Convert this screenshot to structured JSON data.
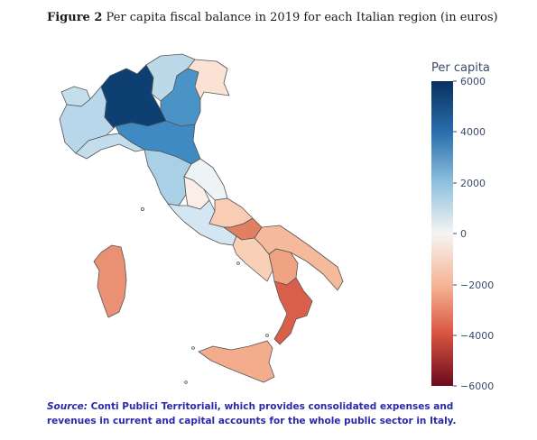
{
  "caption": {
    "figure_label": "Figure 2",
    "text": "Per capita fiscal balance in 2019 for each Italian region (in euros)"
  },
  "legend": {
    "title": "Per capita",
    "ticks": [
      "6000",
      "4000",
      "2000",
      "0",
      "−2000",
      "−4000",
      "−6000"
    ]
  },
  "source": {
    "label": "Source:",
    "text": "Conti Publici Territoriali, which provides consolidated expenses and revenues in current and capital accounts for the whole public sector in Italy."
  },
  "colors": {
    "high": "#0b3b6e",
    "mid_blue": "#3d87c0",
    "light_blue": "#a9d0e6",
    "neutral": "#f5f3f1",
    "light_red": "#f7c4a8",
    "mid_red": "#ea8c6c",
    "dark_red": "#6b0a1c"
  },
  "chart_data": {
    "type": "choropleth",
    "colorbar_range": [
      -6000,
      6000
    ],
    "regions": [
      {
        "name": "Lombardia",
        "color": "#0d3f73"
      },
      {
        "name": "Emilia-Romagna",
        "color": "#3f8ac3"
      },
      {
        "name": "Veneto",
        "color": "#4a93c6"
      },
      {
        "name": "Trentino-Alto Adige",
        "color": "#bcd9ea"
      },
      {
        "name": "Piemonte",
        "color": "#b8d7ea"
      },
      {
        "name": "Valle d'Aosta",
        "color": "#c5deec"
      },
      {
        "name": "Friuli-Venezia Giulia",
        "color": "#fbe2d4"
      },
      {
        "name": "Liguria",
        "color": "#c4ddec"
      },
      {
        "name": "Toscana",
        "color": "#a9d0e6"
      },
      {
        "name": "Marche",
        "color": "#eef3f6"
      },
      {
        "name": "Umbria",
        "color": "#fbeee6"
      },
      {
        "name": "Lazio",
        "color": "#d3e6f1"
      },
      {
        "name": "Abruzzo",
        "color": "#f8cdb4"
      },
      {
        "name": "Molise",
        "color": "#e07f62"
      },
      {
        "name": "Campania",
        "color": "#f8d0b7"
      },
      {
        "name": "Puglia",
        "color": "#f5b99c"
      },
      {
        "name": "Basilicata",
        "color": "#f0a383"
      },
      {
        "name": "Calabria",
        "color": "#d95f4b"
      },
      {
        "name": "Sicilia",
        "color": "#f4ad8c"
      },
      {
        "name": "Sardegna",
        "color": "#ea9075"
      }
    ]
  }
}
